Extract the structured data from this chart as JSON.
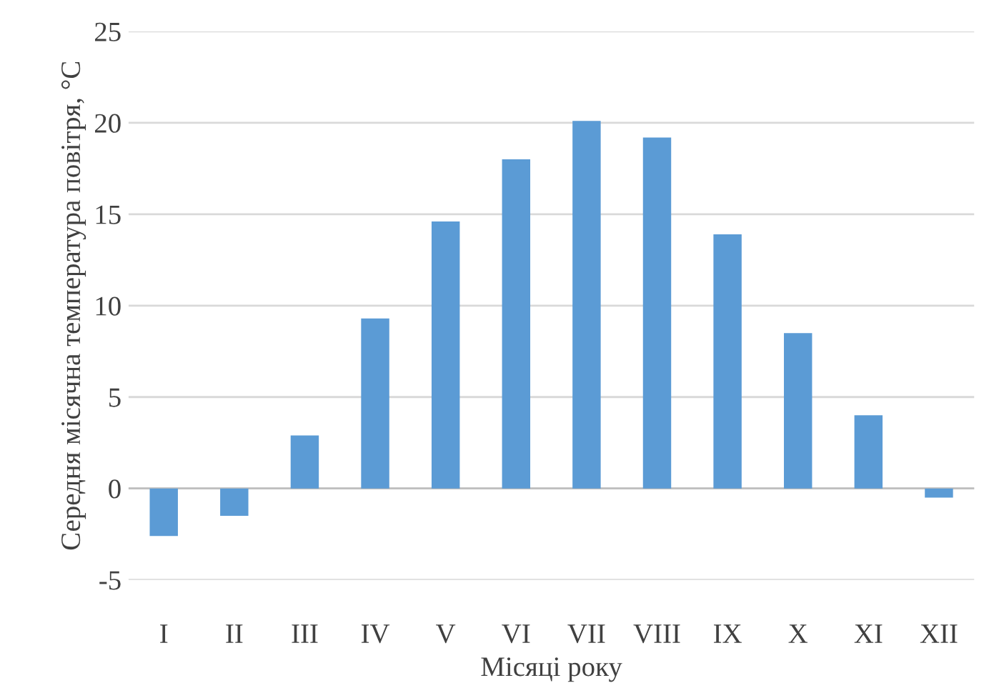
{
  "chart_data": {
    "type": "bar",
    "xlabel": "Місяці року",
    "ylabel": "Середня місячна температура повітря, °C",
    "categories": [
      "I",
      "II",
      "III",
      "IV",
      "V",
      "VI",
      "VII",
      "VIII",
      "IX",
      "X",
      "XI",
      "XII"
    ],
    "values": [
      -2.6,
      -1.5,
      2.9,
      9.3,
      14.6,
      18.0,
      20.1,
      19.2,
      13.9,
      8.5,
      4.0,
      -0.5
    ],
    "color": "#5b9bd5",
    "ylim": [
      -5,
      25
    ],
    "yticks": [
      -5,
      0,
      5,
      10,
      15,
      20,
      25
    ],
    "grid": "y"
  }
}
